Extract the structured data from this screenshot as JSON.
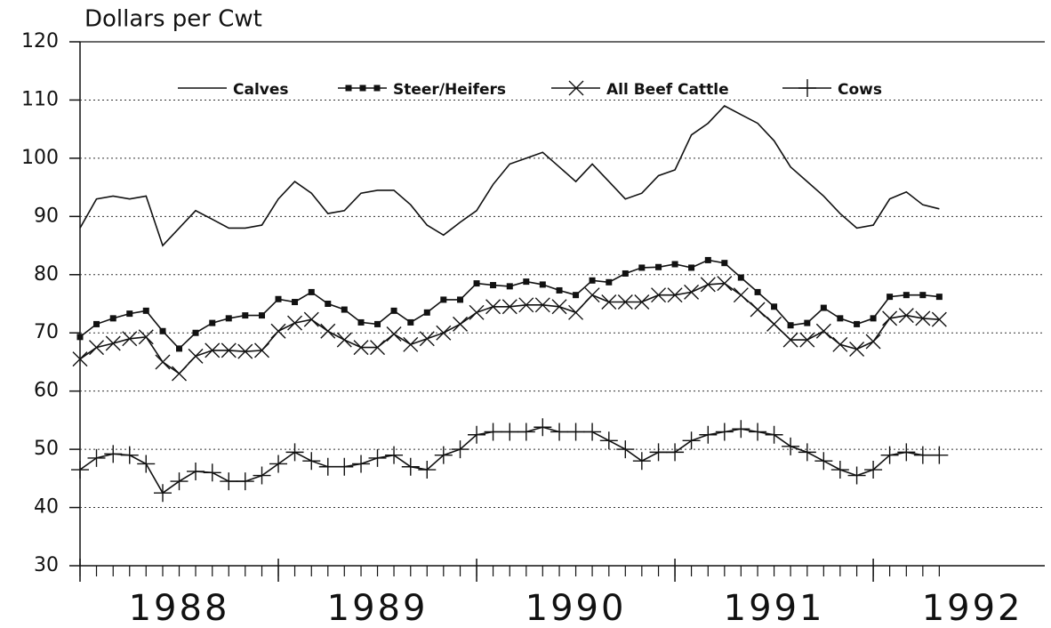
{
  "chart_data": {
    "type": "line",
    "title": "Dollars per Cwt",
    "x": [
      1988.0,
      1988.083,
      1988.167,
      1988.25,
      1988.333,
      1988.417,
      1988.5,
      1988.583,
      1988.667,
      1988.75,
      1988.833,
      1988.917,
      1989.0,
      1989.083,
      1989.167,
      1989.25,
      1989.333,
      1989.417,
      1989.5,
      1989.583,
      1989.667,
      1989.75,
      1989.833,
      1989.917,
      1990.0,
      1990.083,
      1990.167,
      1990.25,
      1990.333,
      1990.417,
      1990.5,
      1990.583,
      1990.667,
      1990.75,
      1990.833,
      1990.917,
      1991.0,
      1991.083,
      1991.167,
      1991.25,
      1991.333,
      1991.417,
      1991.5,
      1991.583,
      1991.667,
      1991.75,
      1991.833,
      1991.917,
      1992.0,
      1992.083,
      1992.167,
      1992.25,
      1992.333
    ],
    "series": [
      {
        "name": "Calves",
        "color": "#111111",
        "marker": "none",
        "values": [
          88,
          93,
          93.5,
          93,
          93.5,
          85,
          88,
          91,
          89.5,
          88,
          88,
          88.5,
          93,
          96,
          94,
          90.5,
          91,
          94,
          94.5,
          94.5,
          92,
          88.5,
          86.8,
          89,
          91,
          95.5,
          99,
          100,
          101,
          98.5,
          96,
          99,
          96,
          93,
          94,
          97,
          98,
          104,
          106,
          109,
          107.5,
          106,
          103,
          98.5,
          96,
          93.5,
          90.5,
          88,
          88.5,
          93,
          94.2,
          92,
          91.3
        ]
      },
      {
        "name": "Steer/Heifers",
        "color": "#111111",
        "marker": "square",
        "values": [
          69.3,
          71.5,
          72.5,
          73.3,
          73.8,
          70.3,
          67.3,
          70,
          71.7,
          72.5,
          73,
          73,
          75.8,
          75.3,
          77,
          75,
          74,
          71.8,
          71.5,
          73.8,
          71.8,
          73.5,
          75.7,
          75.7,
          78.5,
          78.2,
          78,
          78.8,
          78.3,
          77.3,
          76.5,
          79,
          78.7,
          80.2,
          81.2,
          81.3,
          81.8,
          81.2,
          82.5,
          82,
          79.5,
          77,
          74.5,
          71.3,
          71.7,
          74.3,
          72.5,
          71.5,
          72.5,
          76.2,
          76.5,
          76.5,
          76.2
        ]
      },
      {
        "name": "All Beef Cattle",
        "color": "#111111",
        "marker": "x",
        "values": [
          65.5,
          67.5,
          68.2,
          69,
          69.3,
          65,
          63,
          66,
          67,
          67,
          66.8,
          67,
          70.3,
          71.7,
          72.3,
          70.3,
          68.8,
          67.5,
          67.5,
          69.8,
          68,
          69,
          70,
          71.5,
          73.5,
          74.5,
          74.5,
          74.8,
          74.8,
          74.5,
          73.5,
          76.5,
          75.3,
          75.3,
          75.3,
          76.5,
          76.5,
          77,
          78.3,
          78.5,
          76.5,
          74,
          71.5,
          68.8,
          68.8,
          70.3,
          68,
          67.2,
          68.5,
          72.5,
          73,
          72.5,
          72.3
        ]
      },
      {
        "name": "Cows",
        "color": "#111111",
        "marker": "plus",
        "values": [
          46.5,
          48.5,
          49.2,
          49,
          47.5,
          42.5,
          44.5,
          46.2,
          46,
          44.5,
          44.5,
          45.5,
          47.5,
          49.5,
          48,
          47,
          47,
          47.5,
          48.5,
          49,
          47,
          46.5,
          49,
          50,
          52.5,
          53,
          53,
          53,
          53.8,
          53,
          53,
          53,
          51.5,
          50,
          48,
          49.5,
          49.5,
          51.5,
          52.5,
          53,
          53.5,
          53,
          52.5,
          50.5,
          49.5,
          48,
          46.5,
          45.5,
          46.5,
          49,
          49.5,
          49,
          49
        ]
      }
    ],
    "xlim": [
      1988,
      1992.865
    ],
    "xticks": [
      {
        "value": 1988,
        "label": "1988"
      },
      {
        "value": 1989,
        "label": "1989"
      },
      {
        "value": 1990,
        "label": "1990"
      },
      {
        "value": 1991,
        "label": "1991"
      },
      {
        "value": 1992,
        "label": "1992"
      }
    ],
    "ylim": [
      30,
      120
    ],
    "yticks": [
      30,
      40,
      50,
      60,
      70,
      80,
      90,
      100,
      110,
      120
    ],
    "grid": true
  }
}
